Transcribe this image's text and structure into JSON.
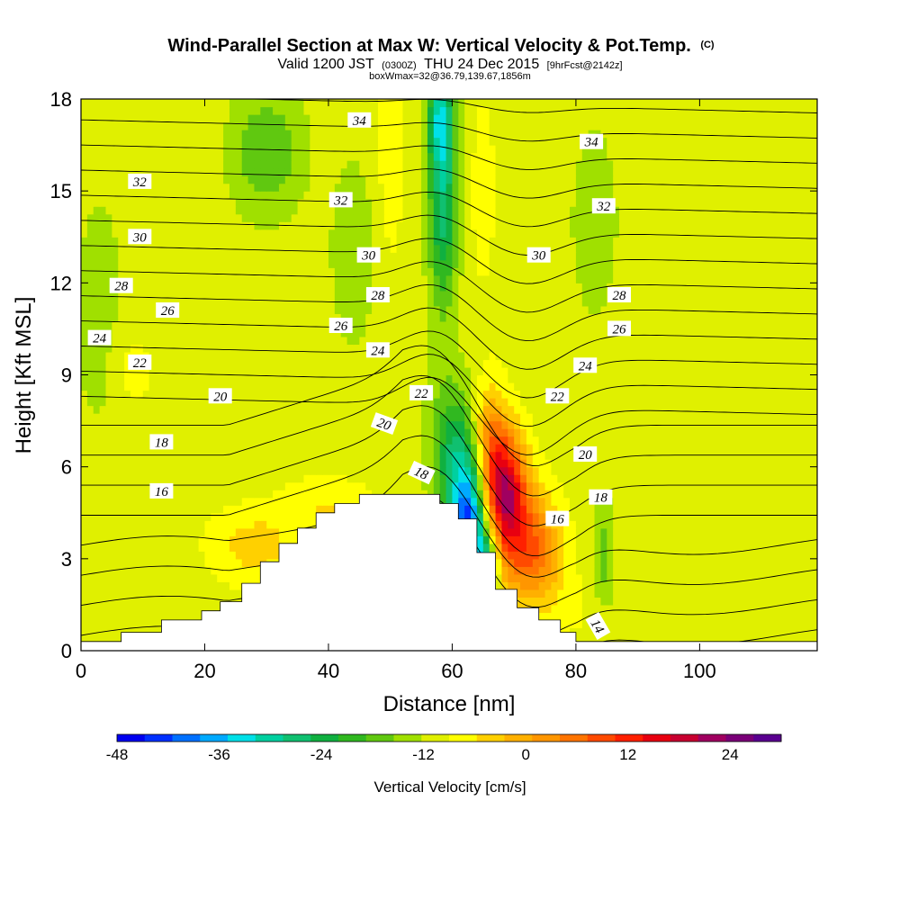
{
  "chart_data": {
    "type": "heatmap",
    "title": "Wind-Parallel Section at Max W: Vertical Velocity & Pot.Temp.",
    "title_mark": "(C)",
    "subtitle_parts": [
      "Valid 1200 JST",
      "(0300Z)",
      "THU 24 Dec 2015",
      "[9hrFcst@2142z]"
    ],
    "subtitle2": "boxWmax=32@36.79,139.67,1856m",
    "xlabel": "Distance [nm]",
    "ylabel": "Height [Kft MSL]",
    "xlim": [
      0,
      119
    ],
    "ylim": [
      0,
      18
    ],
    "x_ticks": [
      0,
      20,
      40,
      60,
      80,
      100
    ],
    "y_ticks": [
      0,
      3,
      6,
      9,
      12,
      15,
      18
    ],
    "grid": false,
    "colorbar": {
      "label": "Vertical Velocity [cm/s]",
      "min": -48,
      "max": 30,
      "step": 4,
      "tick_values": [
        -48,
        -36,
        -24,
        -12,
        0,
        12,
        24
      ],
      "colors": [
        "#0000f0",
        "#0030ff",
        "#0070ff",
        "#00aaff",
        "#00e0e8",
        "#00d0a0",
        "#10c070",
        "#10b040",
        "#30b820",
        "#60c810",
        "#a0e000",
        "#e0f000",
        "#ffff00",
        "#ffd000",
        "#ffb000",
        "#ff9600",
        "#ff7400",
        "#ff4a00",
        "#ff2000",
        "#e80010",
        "#c80030",
        "#a00060",
        "#7a0078",
        "#5a0090"
      ]
    },
    "velocity_field": {
      "background": -2,
      "features": [
        {
          "x": 68.5,
          "y": 5.3,
          "sx": 2.2,
          "sy": 1.4,
          "w": 30
        },
        {
          "x": 71,
          "y": 3.8,
          "sx": 3.0,
          "sy": 1.5,
          "w": 16
        },
        {
          "x": 74.5,
          "y": 3.1,
          "sx": 3.0,
          "sy": 1.2,
          "w": 12
        },
        {
          "x": 66,
          "y": 6.8,
          "sx": 1.8,
          "sy": 1.4,
          "w": 14
        },
        {
          "x": 63,
          "y": 4.0,
          "sx": 1.8,
          "sy": 1.3,
          "w": -32
        },
        {
          "x": 61,
          "y": 5.5,
          "sx": 2.2,
          "sy": 1.6,
          "w": -16
        },
        {
          "x": 65.5,
          "y": 2.5,
          "sx": 1.3,
          "sy": 0.9,
          "w": -26
        },
        {
          "x": 59.5,
          "y": 7.0,
          "sx": 2.8,
          "sy": 1.5,
          "w": -8
        },
        {
          "x": 58.5,
          "y": 14.8,
          "sx": 1.6,
          "sy": 2.5,
          "w": -20
        },
        {
          "x": 58,
          "y": 17.5,
          "sx": 1.4,
          "sy": 1.2,
          "w": -18
        },
        {
          "x": 30,
          "y": 16.3,
          "sx": 4.0,
          "sy": 1.4,
          "w": -10
        },
        {
          "x": 84.5,
          "y": 3.2,
          "sx": 1.2,
          "sy": 1.2,
          "w": -8
        },
        {
          "x": 28,
          "y": 3.4,
          "sx": 5.0,
          "sy": 0.9,
          "w": 8
        },
        {
          "x": 40,
          "y": 4.7,
          "sx": 5.0,
          "sy": 0.7,
          "w": 6
        },
        {
          "x": 50,
          "y": 16,
          "sx": 1.5,
          "sy": 2.5,
          "w": 5
        },
        {
          "x": 65,
          "y": 15,
          "sx": 1.5,
          "sy": 2.5,
          "w": 4
        },
        {
          "x": 8,
          "y": 9.2,
          "sx": 2.5,
          "sy": 1.0,
          "w": 4
        },
        {
          "x": 18,
          "y": 10,
          "sx": 3.0,
          "sy": 3.0,
          "w": 2
        },
        {
          "x": 100,
          "y": 11,
          "sx": 3.0,
          "sy": 3.0,
          "w": 2
        },
        {
          "x": 106,
          "y": 1.2,
          "sx": 4.0,
          "sy": 0.9,
          "w": 2
        },
        {
          "x": 83,
          "y": 14,
          "sx": 3.0,
          "sy": 2.5,
          "w": -4
        },
        {
          "x": 44,
          "y": 13,
          "sx": 3.0,
          "sy": 2.5,
          "w": -4
        },
        {
          "x": 3,
          "y": 11,
          "sx": 3.0,
          "sy": 3.0,
          "w": -4
        },
        {
          "x": 80,
          "y": 1.2,
          "sx": 3.0,
          "sy": 0.8,
          "w": 2
        }
      ]
    },
    "potential_temperature_contours": {
      "levels": [
        14,
        15,
        16,
        17,
        18,
        19,
        20,
        21,
        22,
        23,
        24,
        25,
        26,
        27,
        28,
        29,
        30,
        31,
        32,
        33,
        34,
        35
      ],
      "labels": [
        {
          "v": 34,
          "x": 45,
          "y": 17.3
        },
        {
          "v": 34,
          "x": 82.5,
          "y": 16.6
        },
        {
          "v": 32,
          "x": 9.5,
          "y": 15.3
        },
        {
          "v": 32,
          "x": 42,
          "y": 14.7
        },
        {
          "v": 32,
          "x": 84.5,
          "y": 14.5
        },
        {
          "v": 30,
          "x": 9.5,
          "y": 13.5
        },
        {
          "v": 30,
          "x": 46.5,
          "y": 12.9
        },
        {
          "v": 30,
          "x": 74,
          "y": 12.9
        },
        {
          "v": 28,
          "x": 6.5,
          "y": 11.9
        },
        {
          "v": 28,
          "x": 48,
          "y": 11.6
        },
        {
          "v": 28,
          "x": 87,
          "y": 11.6
        },
        {
          "v": 26,
          "x": 14,
          "y": 11.1
        },
        {
          "v": 26,
          "x": 42,
          "y": 10.6
        },
        {
          "v": 26,
          "x": 87,
          "y": 10.5
        },
        {
          "v": 24,
          "x": 3,
          "y": 10.2
        },
        {
          "v": 24,
          "x": 48,
          "y": 9.8
        },
        {
          "v": 24,
          "x": 81.5,
          "y": 9.3
        },
        {
          "v": 22,
          "x": 9.5,
          "y": 9.4
        },
        {
          "v": 22,
          "x": 55,
          "y": 8.4
        },
        {
          "v": 22,
          "x": 77,
          "y": 8.3
        },
        {
          "v": 20,
          "x": 22.5,
          "y": 8.3
        },
        {
          "v": 20,
          "x": 49,
          "y": 7.4
        },
        {
          "v": 20,
          "x": 81.5,
          "y": 6.4
        },
        {
          "v": 18,
          "x": 13,
          "y": 6.8
        },
        {
          "v": 18,
          "x": 55,
          "y": 5.8
        },
        {
          "v": 18,
          "x": 84,
          "y": 5.0
        },
        {
          "v": 16,
          "x": 13,
          "y": 5.2
        },
        {
          "v": 16,
          "x": 77,
          "y": 4.3
        },
        {
          "v": 14,
          "x": 83.5,
          "y": 0.8
        }
      ]
    },
    "terrain_profile": [
      [
        0,
        0.3
      ],
      [
        6.5,
        0.3
      ],
      [
        6.5,
        0.6
      ],
      [
        13,
        0.6
      ],
      [
        13,
        1.0
      ],
      [
        19.5,
        1.0
      ],
      [
        19.5,
        1.3
      ],
      [
        22.5,
        1.3
      ],
      [
        22.5,
        1.6
      ],
      [
        26,
        1.6
      ],
      [
        26,
        2.2
      ],
      [
        29,
        2.2
      ],
      [
        29,
        2.9
      ],
      [
        32,
        2.9
      ],
      [
        32,
        3.5
      ],
      [
        35,
        3.5
      ],
      [
        35,
        4.0
      ],
      [
        38,
        4.0
      ],
      [
        38,
        4.5
      ],
      [
        41,
        4.5
      ],
      [
        41,
        4.8
      ],
      [
        45,
        4.8
      ],
      [
        45,
        5.1
      ],
      [
        58,
        5.1
      ],
      [
        58,
        4.8
      ],
      [
        61,
        4.8
      ],
      [
        61,
        4.3
      ],
      [
        64,
        4.3
      ],
      [
        64,
        3.2
      ],
      [
        67,
        3.2
      ],
      [
        67,
        2.0
      ],
      [
        70.5,
        2.0
      ],
      [
        70.5,
        1.4
      ],
      [
        74,
        1.4
      ],
      [
        74,
        1.0
      ],
      [
        77.5,
        1.0
      ],
      [
        77.5,
        0.6
      ],
      [
        80,
        0.6
      ],
      [
        80,
        0.3
      ],
      [
        119,
        0.3
      ]
    ]
  }
}
